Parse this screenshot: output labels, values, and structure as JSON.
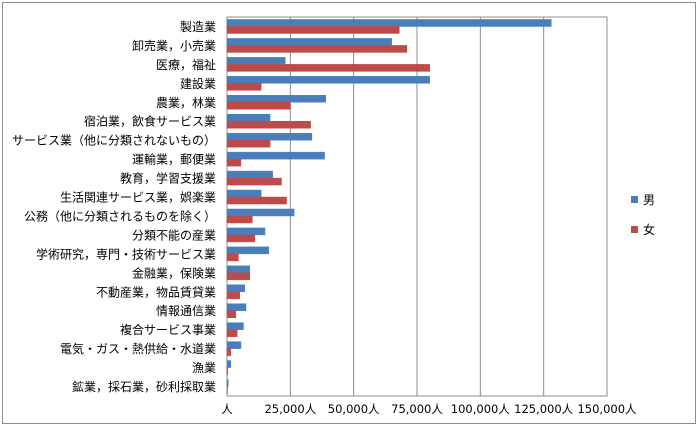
{
  "chart_data": {
    "type": "bar",
    "orientation": "horizontal",
    "categories": [
      "製造業",
      "卸売業，小売業",
      "医療，福祉",
      "建設業",
      "農業，林業",
      "宿泊業，飲食サービス業",
      "サービス業（他に分類されないもの）",
      "運輸業，郵便業",
      "教育，学習支援業",
      "生活関連サービス業，娯楽業",
      "公務（他に分類されるものを除く）",
      "分類不能の産業",
      "学術研究，専門・技術サービス業",
      "金融業，保険業",
      "不動産業，物品賃貸業",
      "情報通信業",
      "複合サービス事業",
      "電気・ガス・熱供給・水道業",
      "漁業",
      "鉱業，採石業，砂利採取業"
    ],
    "series": [
      {
        "name": "男",
        "color": "#4a7ebb",
        "values": [
          128000,
          65000,
          23000,
          80000,
          39000,
          17000,
          33500,
          38500,
          18000,
          13500,
          26500,
          15000,
          16500,
          9000,
          7000,
          7500,
          6500,
          5500,
          1500,
          500
        ]
      },
      {
        "name": "女",
        "color": "#be4b48",
        "values": [
          68000,
          71000,
          80000,
          13500,
          25000,
          33000,
          17000,
          5500,
          21500,
          23500,
          10000,
          11000,
          4500,
          9000,
          5000,
          3500,
          4000,
          1500,
          300,
          100
        ]
      }
    ],
    "x_ticks": [
      "人",
      "25,000人",
      "50,000人",
      "75,000人",
      "100,000人",
      "125,000人",
      "150,000人"
    ],
    "xlim": [
      0,
      150000
    ],
    "grid": true,
    "legend_position": "right"
  }
}
